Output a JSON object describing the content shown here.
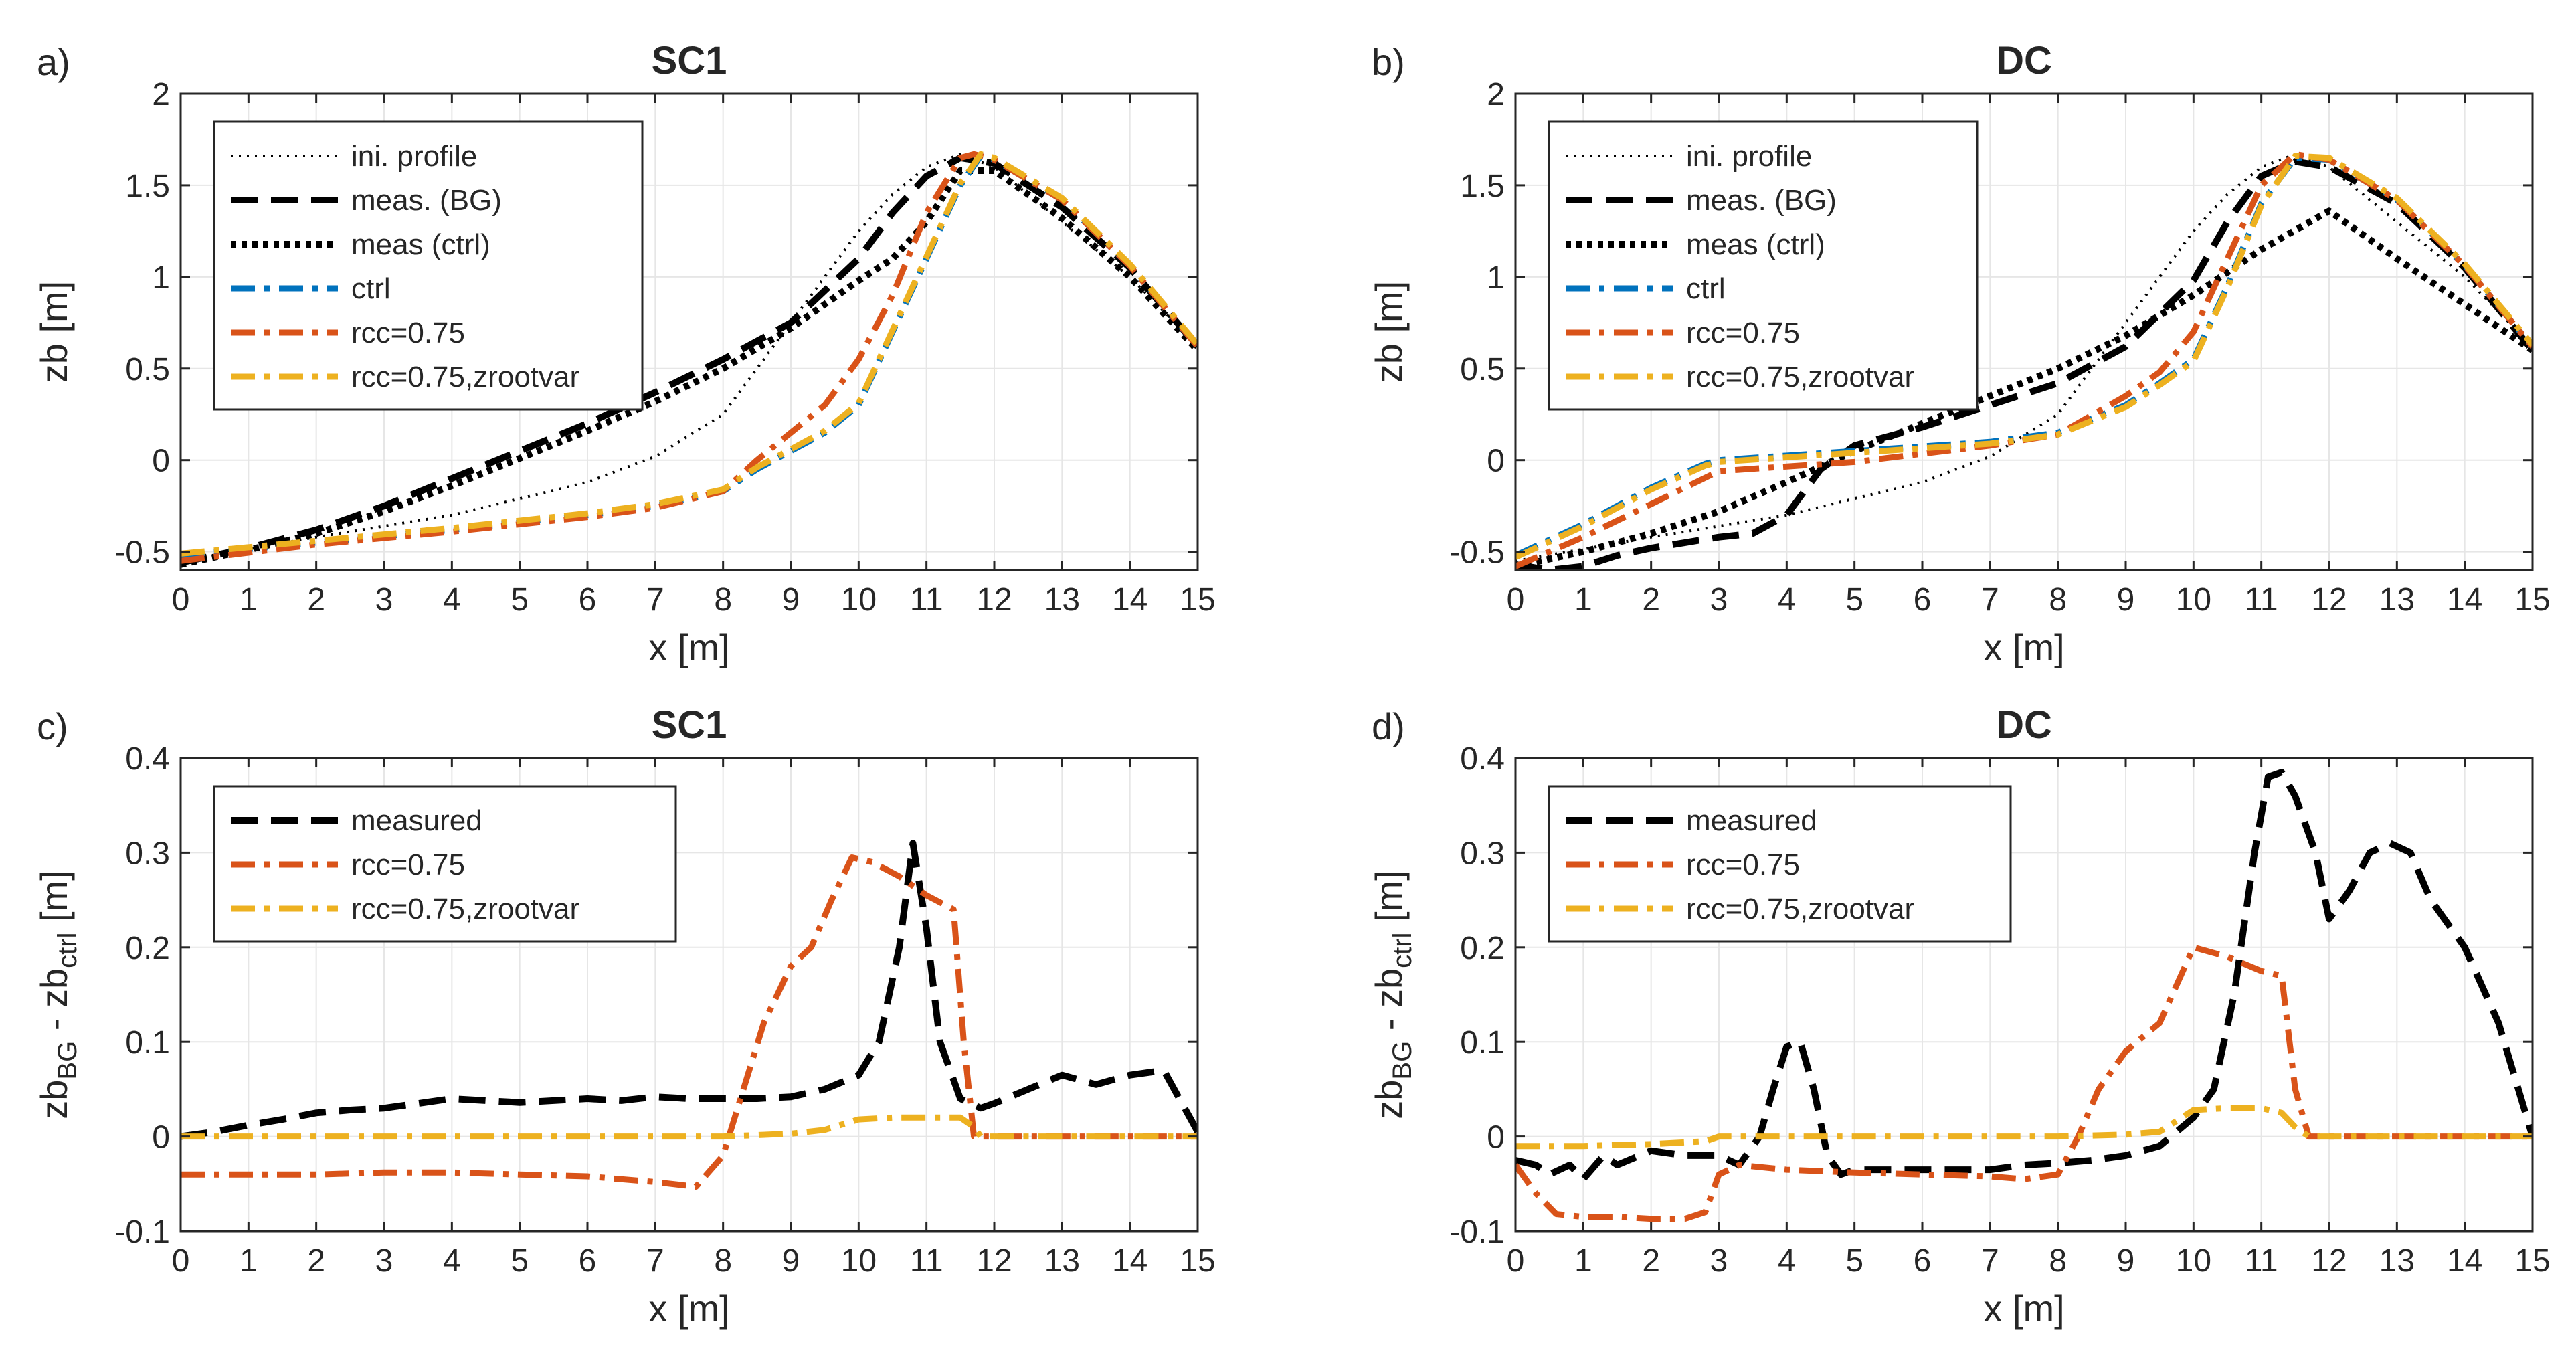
{
  "chart_data": [
    {
      "type": "line",
      "panel_label": "a)",
      "title": "SC1",
      "xlabel": "x [m]",
      "ylabel": "zb [m]",
      "xlim": [
        0,
        15
      ],
      "ylim": [
        -0.6,
        2
      ],
      "xticks": [
        "0",
        "1",
        "2",
        "3",
        "4",
        "5",
        "6",
        "7",
        "8",
        "9",
        "10",
        "11",
        "12",
        "13",
        "14",
        "15"
      ],
      "yticks": [
        "-0.5",
        "0",
        "0.5",
        "1",
        "1.5",
        "2"
      ],
      "legend_position": "top-left",
      "series": [
        {
          "name": "ini. profile",
          "color": "#000000",
          "style": "dotted-thin",
          "x": [
            0,
            2,
            4,
            6,
            7,
            8,
            9,
            10,
            10.5,
            11,
            11.5,
            12,
            13,
            14,
            15
          ],
          "y": [
            -0.55,
            -0.42,
            -0.3,
            -0.12,
            0.02,
            0.25,
            0.75,
            1.25,
            1.45,
            1.6,
            1.67,
            1.6,
            1.3,
            1.0,
            0.62
          ]
        },
        {
          "name": "meas. (BG)",
          "color": "#000000",
          "style": "dashed",
          "x": [
            0,
            1,
            2,
            3,
            4,
            5,
            6,
            7,
            8,
            9,
            10,
            10.5,
            11,
            11.5,
            12,
            13,
            14,
            15
          ],
          "y": [
            -0.56,
            -0.48,
            -0.38,
            -0.25,
            -0.1,
            0.05,
            0.2,
            0.37,
            0.55,
            0.75,
            1.1,
            1.35,
            1.55,
            1.65,
            1.62,
            1.38,
            1.05,
            0.62
          ]
        },
        {
          "name": "meas (ctrl)",
          "color": "#000000",
          "style": "dotted-thick",
          "x": [
            0,
            1,
            2,
            3,
            4,
            5,
            6,
            7,
            8,
            9,
            10,
            10.5,
            11,
            11.5,
            12,
            13,
            14,
            15
          ],
          "y": [
            -0.57,
            -0.49,
            -0.4,
            -0.28,
            -0.14,
            0.01,
            0.16,
            0.32,
            0.5,
            0.72,
            0.98,
            1.1,
            1.3,
            1.58,
            1.58,
            1.32,
            1.0,
            0.6
          ]
        },
        {
          "name": "ctrl",
          "color": "#0072BD",
          "style": "dashdot",
          "x": [
            0,
            2,
            4,
            6,
            7,
            8,
            8.5,
            9,
            9.5,
            10,
            10.5,
            11,
            11.5,
            11.8,
            12,
            13,
            14,
            15
          ],
          "y": [
            -0.52,
            -0.45,
            -0.38,
            -0.3,
            -0.25,
            -0.17,
            -0.05,
            0.05,
            0.15,
            0.3,
            0.7,
            1.1,
            1.5,
            1.66,
            1.64,
            1.42,
            1.06,
            0.62
          ]
        },
        {
          "name": "rcc=0.75",
          "color": "#D95319",
          "style": "dashdot",
          "x": [
            0,
            2,
            4,
            6,
            7,
            8,
            8.5,
            9,
            9.5,
            10,
            10.5,
            11,
            11.5,
            11.7,
            12,
            13,
            14,
            15
          ],
          "y": [
            -0.55,
            -0.46,
            -0.39,
            -0.31,
            -0.26,
            -0.17,
            0.0,
            0.15,
            0.3,
            0.55,
            0.9,
            1.35,
            1.65,
            1.67,
            1.64,
            1.42,
            1.06,
            0.62
          ]
        },
        {
          "name": "rcc=0.75,zrootvar",
          "color": "#EDB120",
          "style": "dashdot",
          "x": [
            0,
            2,
            4,
            6,
            7,
            8,
            8.5,
            9,
            9.5,
            10,
            10.5,
            11,
            11.5,
            11.8,
            12,
            13,
            14,
            15
          ],
          "y": [
            -0.51,
            -0.44,
            -0.37,
            -0.29,
            -0.24,
            -0.16,
            -0.04,
            0.06,
            0.16,
            0.31,
            0.71,
            1.11,
            1.51,
            1.67,
            1.65,
            1.43,
            1.07,
            0.63
          ]
        }
      ]
    },
    {
      "type": "line",
      "panel_label": "b)",
      "title": "DC",
      "xlabel": "x [m]",
      "ylabel": "zb [m]",
      "xlim": [
        0,
        15
      ],
      "ylim": [
        -0.6,
        2
      ],
      "xticks": [
        "0",
        "1",
        "2",
        "3",
        "4",
        "5",
        "6",
        "7",
        "8",
        "9",
        "10",
        "11",
        "12",
        "13",
        "14",
        "15"
      ],
      "yticks": [
        "-0.5",
        "0",
        "0.5",
        "1",
        "1.5",
        "2"
      ],
      "legend_position": "top-left",
      "series": [
        {
          "name": "ini. profile",
          "color": "#000000",
          "style": "dotted-thin",
          "x": [
            0,
            2,
            4,
            6,
            7,
            8,
            9,
            10,
            10.5,
            11,
            11.5,
            12,
            13,
            14,
            15
          ],
          "y": [
            -0.55,
            -0.42,
            -0.3,
            -0.12,
            0.02,
            0.25,
            0.75,
            1.25,
            1.45,
            1.6,
            1.67,
            1.6,
            1.3,
            1.0,
            0.62
          ]
        },
        {
          "name": "meas. (BG)",
          "color": "#000000",
          "style": "dashed",
          "x": [
            0,
            0.5,
            1,
            1.5,
            2,
            2.5,
            3,
            3.5,
            4,
            4.5,
            5,
            6,
            7,
            8,
            9,
            10,
            10.5,
            11,
            11.5,
            12,
            13,
            14,
            15
          ],
          "y": [
            -0.57,
            -0.6,
            -0.58,
            -0.52,
            -0.48,
            -0.45,
            -0.42,
            -0.4,
            -0.3,
            -0.05,
            0.08,
            0.18,
            0.3,
            0.42,
            0.62,
            0.98,
            1.3,
            1.55,
            1.63,
            1.6,
            1.4,
            1.05,
            0.6
          ]
        },
        {
          "name": "meas (ctrl)",
          "color": "#000000",
          "style": "dotted-thick",
          "x": [
            0,
            1,
            2,
            3,
            4,
            5,
            6,
            7,
            8,
            9,
            10,
            11,
            12,
            13,
            14,
            15
          ],
          "y": [
            -0.58,
            -0.5,
            -0.4,
            -0.28,
            -0.12,
            0.05,
            0.2,
            0.35,
            0.5,
            0.68,
            0.9,
            1.15,
            1.36,
            1.1,
            0.85,
            0.6
          ]
        },
        {
          "name": "ctrl",
          "color": "#0072BD",
          "style": "dashdot",
          "x": [
            0,
            1,
            2,
            2.8,
            3,
            5,
            7,
            8,
            9,
            9.5,
            10,
            10.5,
            11,
            11.5,
            12,
            13,
            14,
            15
          ],
          "y": [
            -0.52,
            -0.35,
            -0.15,
            -0.02,
            0.0,
            0.05,
            0.1,
            0.15,
            0.3,
            0.42,
            0.55,
            0.95,
            1.4,
            1.65,
            1.64,
            1.42,
            1.06,
            0.62
          ]
        },
        {
          "name": "rcc=0.75",
          "color": "#D95319",
          "style": "dashdot",
          "x": [
            0,
            1,
            2,
            3,
            5,
            7,
            8,
            9,
            9.5,
            10,
            10.5,
            11,
            11.5,
            12,
            13,
            14,
            15
          ],
          "y": [
            -0.58,
            -0.42,
            -0.24,
            -0.06,
            -0.01,
            0.08,
            0.14,
            0.35,
            0.48,
            0.7,
            1.1,
            1.5,
            1.67,
            1.64,
            1.42,
            1.06,
            0.62
          ]
        },
        {
          "name": "rcc=0.75,zrootvar",
          "color": "#EDB120",
          "style": "dashdot",
          "x": [
            0,
            1,
            2,
            2.8,
            3,
            5,
            7,
            8,
            9,
            9.5,
            10,
            10.5,
            11,
            11.5,
            12,
            13,
            14,
            15
          ],
          "y": [
            -0.53,
            -0.36,
            -0.16,
            -0.03,
            -0.01,
            0.04,
            0.09,
            0.14,
            0.29,
            0.41,
            0.54,
            0.94,
            1.39,
            1.66,
            1.65,
            1.43,
            1.07,
            0.63
          ]
        }
      ]
    },
    {
      "type": "line",
      "panel_label": "c)",
      "title": "SC1",
      "xlabel": "x [m]",
      "ylabel_main": "zb",
      "ylabel_sub1": "BG",
      "ylabel_mid": " - zb",
      "ylabel_sub2": "ctrl",
      "ylabel_end": " [m]",
      "xlim": [
        0,
        15
      ],
      "ylim": [
        -0.1,
        0.4
      ],
      "xticks": [
        "0",
        "1",
        "2",
        "3",
        "4",
        "5",
        "6",
        "7",
        "8",
        "9",
        "10",
        "11",
        "12",
        "13",
        "14",
        "15"
      ],
      "yticks": [
        "-0.1",
        "0",
        "0.1",
        "0.2",
        "0.3",
        "0.4"
      ],
      "legend_position": "top-left",
      "series": [
        {
          "name": "measured",
          "color": "#000000",
          "style": "dashed",
          "x": [
            0,
            0.5,
            1,
            1.5,
            2,
            2.5,
            3,
            3.5,
            4,
            4.5,
            5,
            5.5,
            6,
            6.5,
            7,
            7.5,
            8,
            8.5,
            9,
            9.5,
            10,
            10.3,
            10.6,
            10.8,
            11,
            11.2,
            11.5,
            11.8,
            12,
            12.5,
            13,
            13.5,
            14,
            14.5,
            15
          ],
          "y": [
            0,
            0.005,
            0.012,
            0.018,
            0.025,
            0.028,
            0.03,
            0.035,
            0.04,
            0.038,
            0.036,
            0.038,
            0.04,
            0.038,
            0.042,
            0.04,
            0.04,
            0.04,
            0.042,
            0.05,
            0.065,
            0.1,
            0.2,
            0.31,
            0.22,
            0.1,
            0.04,
            0.03,
            0.035,
            0.05,
            0.065,
            0.055,
            0.065,
            0.07,
            0.005
          ]
        },
        {
          "name": "rcc=0.75",
          "color": "#D95319",
          "style": "dashdot",
          "x": [
            0,
            1,
            2,
            3,
            4,
            5,
            6,
            7,
            7.6,
            8,
            8.3,
            8.6,
            9,
            9.3,
            9.6,
            9.9,
            10.2,
            10.6,
            11,
            11.4,
            11.55,
            11.7,
            12,
            13,
            14,
            15
          ],
          "y": [
            -0.04,
            -0.04,
            -0.04,
            -0.038,
            -0.038,
            -0.04,
            -0.042,
            -0.048,
            -0.053,
            -0.02,
            0.05,
            0.12,
            0.18,
            0.2,
            0.25,
            0.295,
            0.29,
            0.275,
            0.255,
            0.24,
            0.1,
            0.0,
            0.0,
            0.0,
            0.0,
            0.0
          ]
        },
        {
          "name": "rcc=0.75,zrootvar",
          "color": "#EDB120",
          "style": "dashdot",
          "x": [
            0,
            2,
            4,
            6,
            8,
            9,
            9.5,
            10,
            10.5,
            11,
            11.5,
            11.7,
            11.8,
            12,
            14,
            15
          ],
          "y": [
            0,
            0,
            0,
            0,
            0,
            0.003,
            0.007,
            0.018,
            0.02,
            0.02,
            0.02,
            0.01,
            0,
            0,
            0,
            0
          ]
        }
      ]
    },
    {
      "type": "line",
      "panel_label": "d)",
      "title": "DC",
      "xlabel": "x [m]",
      "ylabel_main": "zb",
      "ylabel_sub1": "BG",
      "ylabel_mid": " - zb",
      "ylabel_sub2": "ctrl",
      "ylabel_end": " [m]",
      "xlim": [
        0,
        15
      ],
      "ylim": [
        -0.1,
        0.4
      ],
      "xticks": [
        "0",
        "1",
        "2",
        "3",
        "4",
        "5",
        "6",
        "7",
        "8",
        "9",
        "10",
        "11",
        "12",
        "13",
        "14",
        "15"
      ],
      "yticks": [
        "-0.1",
        "0",
        "0.1",
        "0.2",
        "0.3",
        "0.4"
      ],
      "legend_position": "top-left",
      "series": [
        {
          "name": "measured",
          "color": "#000000",
          "style": "dashed",
          "x": [
            0,
            0.3,
            0.5,
            0.8,
            1,
            1.3,
            1.5,
            2,
            2.5,
            3,
            3.3,
            3.6,
            3.8,
            4,
            4.2,
            4.4,
            4.6,
            4.8,
            5,
            6,
            7,
            7.5,
            8,
            8.5,
            9,
            9.5,
            10,
            10.3,
            10.6,
            10.9,
            11.1,
            11.3,
            11.5,
            11.8,
            12,
            12.3,
            12.6,
            12.9,
            13.2,
            13.5,
            14,
            14.5,
            15
          ],
          "y": [
            -0.025,
            -0.03,
            -0.04,
            -0.03,
            -0.045,
            -0.02,
            -0.03,
            -0.015,
            -0.02,
            -0.02,
            -0.03,
            0.0,
            0.05,
            0.095,
            0.1,
            0.05,
            -0.02,
            -0.04,
            -0.035,
            -0.035,
            -0.035,
            -0.03,
            -0.028,
            -0.025,
            -0.02,
            -0.01,
            0.02,
            0.05,
            0.15,
            0.3,
            0.38,
            0.385,
            0.36,
            0.3,
            0.23,
            0.26,
            0.3,
            0.31,
            0.3,
            0.25,
            0.2,
            0.12,
            0.0
          ]
        },
        {
          "name": "rcc=0.75",
          "color": "#D95319",
          "style": "dashdot",
          "x": [
            0,
            0.3,
            0.6,
            1,
            1.5,
            2,
            2.5,
            2.8,
            3,
            3.3,
            4,
            5,
            6,
            7,
            7.5,
            8,
            8.3,
            8.6,
            9,
            9.5,
            10,
            10.5,
            11,
            11.3,
            11.5,
            11.7,
            12,
            13,
            14,
            15
          ],
          "y": [
            -0.03,
            -0.06,
            -0.082,
            -0.085,
            -0.085,
            -0.087,
            -0.087,
            -0.08,
            -0.04,
            -0.03,
            -0.035,
            -0.038,
            -0.04,
            -0.042,
            -0.045,
            -0.04,
            0.0,
            0.05,
            0.09,
            0.12,
            0.2,
            0.19,
            0.175,
            0.17,
            0.05,
            0.0,
            0.0,
            0.0,
            0.0,
            0.0
          ]
        },
        {
          "name": "rcc=0.75,zrootvar",
          "color": "#EDB120",
          "style": "dashdot",
          "x": [
            0,
            1,
            2,
            2.8,
            3,
            5,
            8,
            9,
            9.5,
            10,
            10.5,
            11,
            11.3,
            11.5,
            11.7,
            12,
            15
          ],
          "y": [
            -0.01,
            -0.01,
            -0.008,
            -0.005,
            0,
            0,
            0,
            0.002,
            0.005,
            0.028,
            0.03,
            0.03,
            0.025,
            0.01,
            0,
            0,
            0
          ]
        }
      ]
    }
  ]
}
